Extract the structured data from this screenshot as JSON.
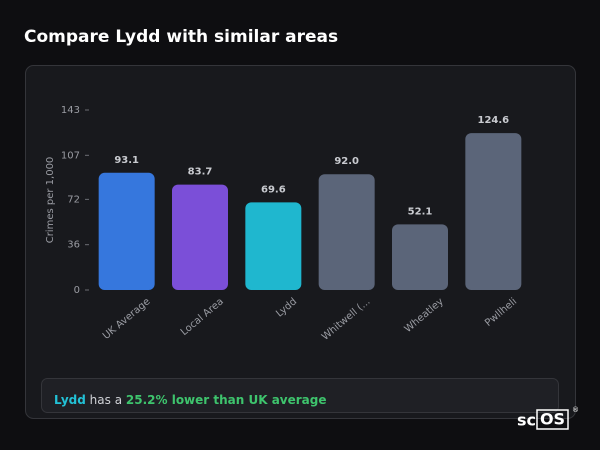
{
  "page_title": "Compare Lydd with similar areas",
  "chart_data": {
    "type": "bar",
    "y_label": "Crimes per 1,000",
    "categories": [
      "UK Average",
      "Local Area",
      "Lydd",
      "Whitwell (...",
      "Wheatley",
      "Pwllheli"
    ],
    "values": [
      93.1,
      83.7,
      69.6,
      92.0,
      52.1,
      124.6
    ],
    "value_labels": [
      "93.1",
      "83.7",
      "69.6",
      "92.0",
      "52.1",
      "124.6"
    ],
    "colors": [
      "#3677dd",
      "#7b4fd8",
      "#1fb7cf",
      "#5b6579",
      "#5b6579",
      "#5b6579"
    ],
    "ylim": [
      0,
      143
    ],
    "yticks": [
      0,
      36,
      72,
      107,
      143
    ]
  },
  "summary": {
    "place": "Lydd",
    "text": "has a",
    "highlight": "25.2% lower than UK average"
  },
  "logo": {
    "prefix": "sc",
    "boxed": "OS",
    "mark": "®"
  }
}
